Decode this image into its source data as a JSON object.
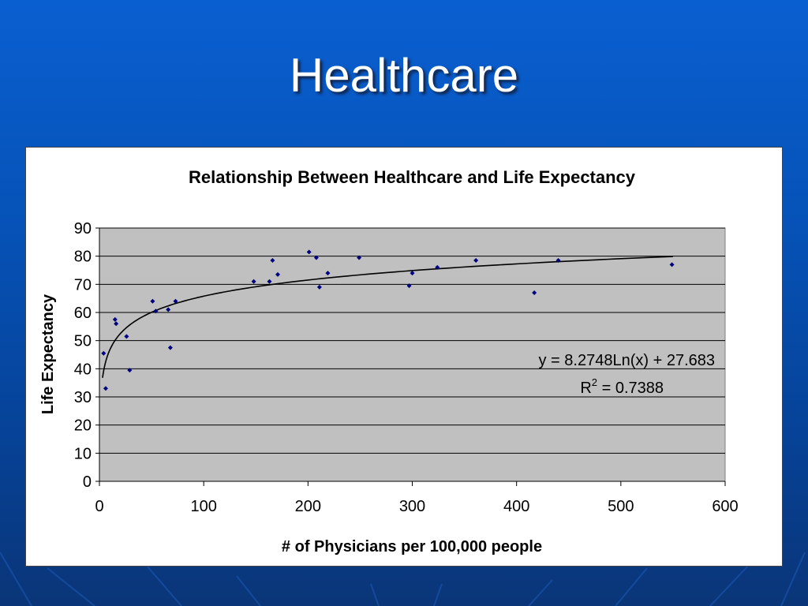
{
  "slide": {
    "title": "Healthcare"
  },
  "colors": {
    "background": "#0653b9",
    "plot_area": "#c0c0c0",
    "points": "#000080",
    "trendline": "#000000"
  },
  "chart_data": {
    "type": "scatter",
    "title": "Relationship Between Healthcare and Life Expectancy",
    "xlabel": "# of Physicians per 100,000 people",
    "ylabel": "Life Expectancy",
    "xlim": [
      0,
      600
    ],
    "ylim": [
      0,
      90
    ],
    "xticks": [
      "0",
      "100",
      "200",
      "300",
      "400",
      "500",
      "600"
    ],
    "yticks": [
      "0",
      "10",
      "20",
      "30",
      "40",
      "50",
      "60",
      "70",
      "80",
      "90"
    ],
    "grid": true,
    "legend": "none",
    "points": [
      {
        "x": 4,
        "y": 45.5
      },
      {
        "x": 6,
        "y": 33
      },
      {
        "x": 15,
        "y": 57.5
      },
      {
        "x": 16,
        "y": 56
      },
      {
        "x": 26,
        "y": 51.5
      },
      {
        "x": 29,
        "y": 39.5
      },
      {
        "x": 51,
        "y": 64
      },
      {
        "x": 54,
        "y": 60.5
      },
      {
        "x": 66,
        "y": 61
      },
      {
        "x": 68,
        "y": 47.5
      },
      {
        "x": 73,
        "y": 64
      },
      {
        "x": 148,
        "y": 71
      },
      {
        "x": 163,
        "y": 71
      },
      {
        "x": 166,
        "y": 78.5
      },
      {
        "x": 171,
        "y": 73.5
      },
      {
        "x": 201,
        "y": 81.5
      },
      {
        "x": 208,
        "y": 79.5
      },
      {
        "x": 211,
        "y": 69
      },
      {
        "x": 219,
        "y": 74
      },
      {
        "x": 249,
        "y": 79.5
      },
      {
        "x": 297,
        "y": 69.5
      },
      {
        "x": 300,
        "y": 74
      },
      {
        "x": 324,
        "y": 76
      },
      {
        "x": 361,
        "y": 78.5
      },
      {
        "x": 417,
        "y": 67
      },
      {
        "x": 440,
        "y": 78.5
      },
      {
        "x": 549,
        "y": 77
      }
    ],
    "trendline": {
      "type": "logarithmic",
      "a": 8.2748,
      "b": 27.683,
      "x_range": [
        3,
        550
      ],
      "equation_text": "y = 8.2748Ln(x) + 27.683",
      "r2_prefix": "R",
      "r2_superscript": "2",
      "r2_value_text": " = 0.7388"
    }
  }
}
